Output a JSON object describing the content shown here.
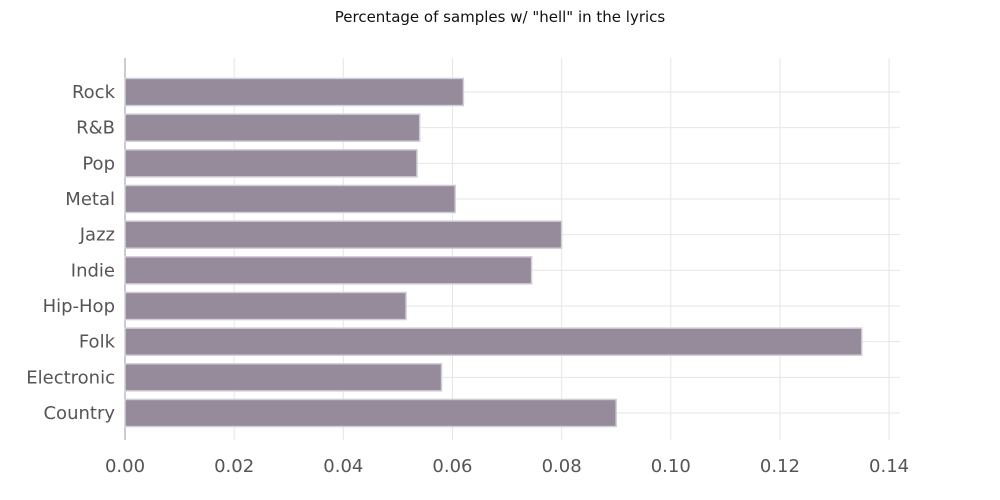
{
  "chart_data": {
    "type": "bar",
    "orientation": "horizontal",
    "title": "Percentage of samples w/ \"hell\" in the lyrics",
    "xlabel": "",
    "ylabel": "",
    "categories": [
      "Rock",
      "R&B",
      "Pop",
      "Metal",
      "Jazz",
      "Indie",
      "Hip-Hop",
      "Folk",
      "Electronic",
      "Country"
    ],
    "values": [
      0.062,
      0.054,
      0.0535,
      0.0605,
      0.08,
      0.0745,
      0.0515,
      0.135,
      0.058,
      0.09
    ],
    "xlim": [
      0,
      0.142
    ],
    "xticks": [
      0.0,
      0.02,
      0.04,
      0.06,
      0.08,
      0.1,
      0.12,
      0.14
    ],
    "xtick_labels": [
      "0.00",
      "0.02",
      "0.04",
      "0.06",
      "0.08",
      "0.10",
      "0.12",
      "0.14"
    ],
    "grid": true,
    "bar_color": "#958b9b"
  }
}
